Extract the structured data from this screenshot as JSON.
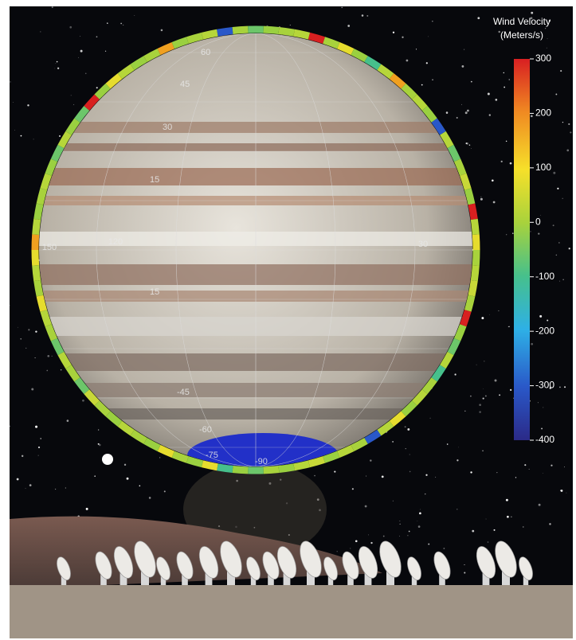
{
  "colorbar": {
    "title": [
      "Wind Velocity",
      "(Meters/s)"
    ],
    "ticks": [
      300,
      200,
      100,
      0,
      -100,
      -200,
      -300,
      -400
    ]
  },
  "globe": {
    "latitude_labels": [
      "60",
      "45",
      "30",
      "15",
      "15",
      "-45",
      "-60",
      "-75",
      "-90"
    ],
    "longitude_labels": [
      "150",
      "120",
      "30"
    ]
  }
}
